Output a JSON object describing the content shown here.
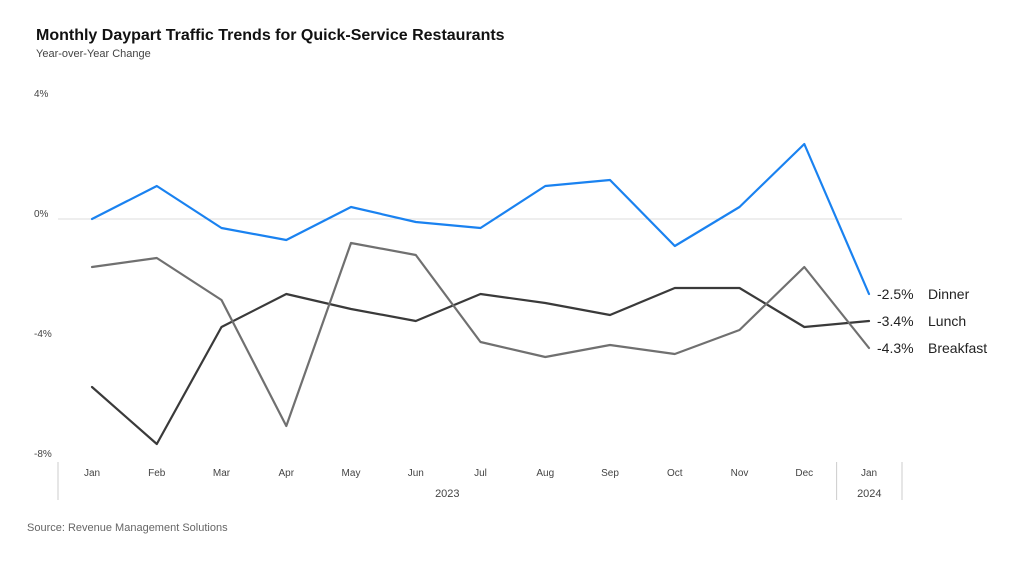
{
  "chart_data": {
    "type": "line",
    "title": "Monthly Daypart Traffic Trends for Quick-Service Restaurants",
    "subtitle": "Year-over-Year Change",
    "source": "Source: Revenue Management Solutions",
    "categories": [
      "Jan",
      "Feb",
      "Mar",
      "Apr",
      "May",
      "Jun",
      "Jul",
      "Aug",
      "Sep",
      "Oct",
      "Nov",
      "Dec",
      "Jan"
    ],
    "year_groups": [
      {
        "label": "2023",
        "start": 0,
        "end": 11
      },
      {
        "label": "2024",
        "start": 12,
        "end": 12
      }
    ],
    "y_ticks": [
      "4%",
      "0%",
      "-4%",
      "-8%"
    ],
    "y_tick_values": [
      4,
      0,
      -4,
      -8
    ],
    "ylim": [
      -8,
      4
    ],
    "grid": "zero line only",
    "series": [
      {
        "name": "Dinner",
        "color": "#1a82f0",
        "values": [
          0.0,
          1.1,
          -0.3,
          -0.7,
          0.4,
          -0.1,
          -0.3,
          1.1,
          1.3,
          -0.9,
          0.4,
          2.5,
          -2.5
        ],
        "end_label": "-2.5%"
      },
      {
        "name": "Lunch",
        "color": "#3a3a3a",
        "values": [
          -5.6,
          -7.5,
          -3.6,
          -2.5,
          -3.0,
          -3.4,
          -2.5,
          -2.8,
          -3.2,
          -2.3,
          -2.3,
          -3.6,
          -3.4
        ],
        "end_label": "-3.4%"
      },
      {
        "name": "Breakfast",
        "color": "#707070",
        "values": [
          -1.6,
          -1.3,
          -2.7,
          -6.9,
          -0.8,
          -1.2,
          -4.1,
          -4.6,
          -4.2,
          -4.5,
          -3.7,
          -1.6,
          -4.3
        ],
        "end_label": "-4.3%"
      }
    ]
  }
}
